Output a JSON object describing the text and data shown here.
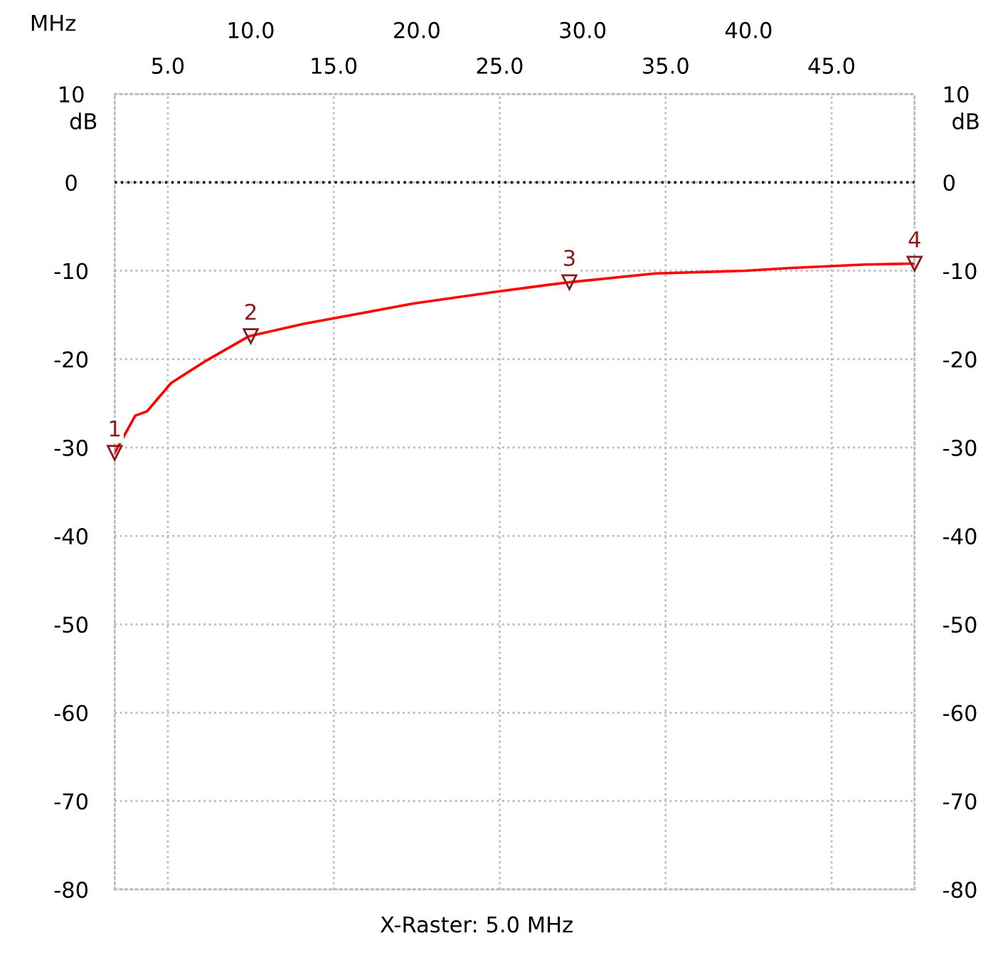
{
  "chart_data": {
    "type": "line",
    "xlabel": "MHz",
    "ylabel": "dB",
    "y2label": "dB",
    "xlim": [
      1.8,
      50
    ],
    "xticks": [
      {
        "value": 5,
        "label": "5.0"
      },
      {
        "value": 15,
        "label": "15.0"
      },
      {
        "value": 25,
        "label": "25.0"
      },
      {
        "value": 35,
        "label": "35.0"
      },
      {
        "value": 45,
        "label": "45.0"
      }
    ],
    "x2lim": [
      1.8,
      50
    ],
    "x2ticks": [
      {
        "value": 10,
        "label": "10.0"
      },
      {
        "value": 20,
        "label": "20.0"
      },
      {
        "value": 30,
        "label": "30.0"
      },
      {
        "value": 40,
        "label": "40.0"
      }
    ],
    "ylim": [
      -80,
      10
    ],
    "yticks": [
      -80,
      -70,
      -60,
      -50,
      -40,
      -30,
      -20,
      -10,
      0,
      10
    ],
    "y2lim": [
      -80,
      10
    ],
    "y2ticks": [
      -80,
      -70,
      -60,
      -50,
      -40,
      -30,
      -20,
      -10,
      0,
      10
    ],
    "grid": true,
    "line_style": "solid",
    "marker": "none",
    "ref_lines": [
      {
        "axis": "y",
        "value": 0,
        "color": "#000000",
        "line_style": "dotted"
      }
    ],
    "series": [
      {
        "color": "#ff0000",
        "x": [
          1.8,
          3.04,
          3.75,
          5.2,
          7.2,
          9.9,
          13.2,
          16.4,
          19.8,
          24.7,
          27.5,
          29.2,
          34.4,
          39.8,
          42.4,
          47.0,
          49.7,
          50
        ],
        "values": [
          -30.6,
          -26.4,
          -25.9,
          -22.7,
          -20.3,
          -17.4,
          -16.0,
          -14.9,
          -13.7,
          -12.4,
          -11.7,
          -11.3,
          -10.3,
          -10.0,
          -9.7,
          -9.3,
          -9.2,
          -9.2
        ]
      }
    ],
    "annotations": [
      {
        "text": "1",
        "x": 1.8,
        "y": -30.6
      },
      {
        "text": "2",
        "x": 10.0,
        "y": -17.4
      },
      {
        "text": "3",
        "x": 29.2,
        "y": -11.3
      },
      {
        "text": "4",
        "x": 50,
        "y": -9.2
      },
      "X-Raster: 5.0 MHz"
    ]
  }
}
